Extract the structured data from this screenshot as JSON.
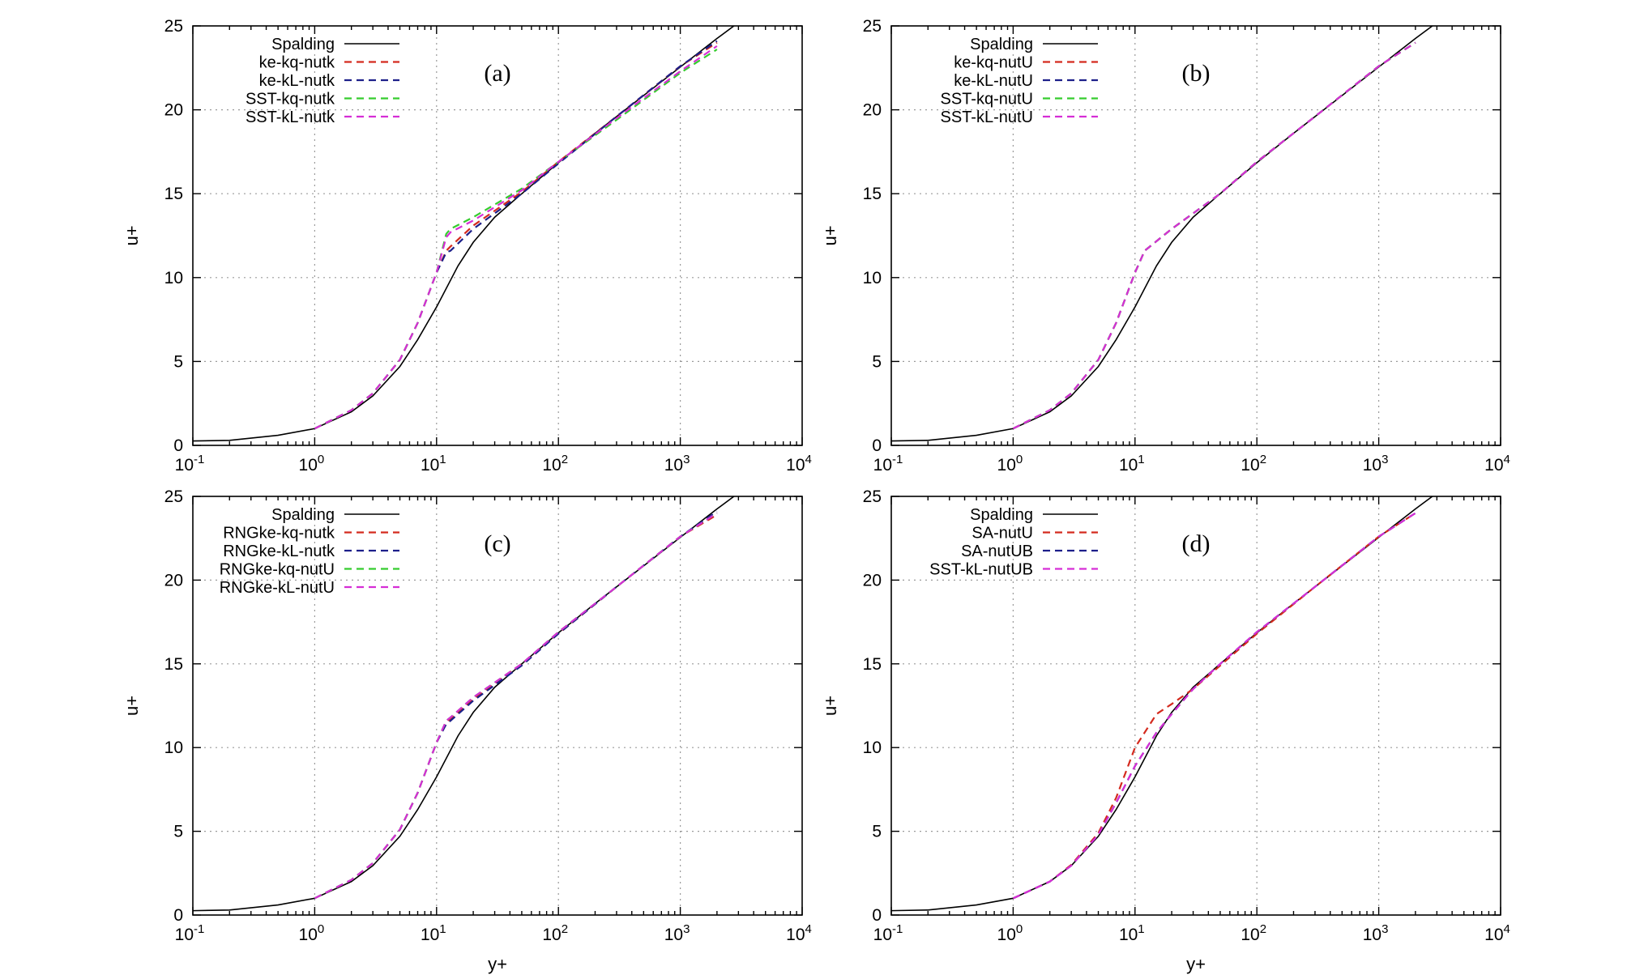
{
  "chart_data": [
    {
      "type": "line",
      "panel_label": "(a)",
      "xlabel": "",
      "ylabel": "u+",
      "xscale": "log",
      "xlim": [
        0.1,
        10000
      ],
      "ylim": [
        0,
        25
      ],
      "xticks": [
        0.1,
        1,
        10,
        100,
        1000,
        10000
      ],
      "yticks": [
        0,
        5,
        10,
        15,
        20,
        25
      ],
      "grid": true,
      "legend_position": "top-left",
      "series": [
        {
          "name": "Spalding",
          "color": "#000000",
          "dash": "solid",
          "x": [
            0.1,
            0.2,
            0.5,
            1,
            2,
            3,
            5,
            7,
            10,
            15,
            20,
            30,
            50,
            100,
            200,
            500,
            1000,
            2000,
            3000
          ],
          "y": [
            0.26,
            0.3,
            0.6,
            1.0,
            2.0,
            2.95,
            4.7,
            6.3,
            8.25,
            10.7,
            12.1,
            13.6,
            15.0,
            16.85,
            18.6,
            20.85,
            22.55,
            24.25,
            25.2
          ]
        },
        {
          "name": "ke-kq-nutk",
          "color": "#d42a1e",
          "dash": "dashed",
          "x": [
            1,
            2,
            3,
            5,
            7,
            10,
            12,
            13,
            20,
            50,
            100,
            300,
            1000,
            2000
          ],
          "y": [
            1.0,
            2.1,
            3.1,
            5.1,
            7.3,
            10.3,
            11.6,
            11.85,
            13.1,
            15.1,
            16.9,
            19.6,
            22.6,
            24.0
          ]
        },
        {
          "name": "ke-kL-nutk",
          "color": "#1c1f8a",
          "dash": "dashed",
          "x": [
            1,
            2,
            3,
            5,
            7,
            10,
            12,
            13,
            20,
            50,
            100,
            300,
            1000,
            2000
          ],
          "y": [
            1.0,
            2.1,
            3.1,
            5.1,
            7.3,
            10.3,
            11.5,
            11.6,
            12.9,
            15.0,
            16.8,
            19.6,
            22.6,
            24.1
          ]
        },
        {
          "name": "SST-kq-nutk",
          "color": "#35cc2e",
          "dash": "dashed",
          "x": [
            1,
            2,
            3,
            5,
            7,
            10,
            12,
            13,
            20,
            50,
            100,
            300,
            1000,
            2000
          ],
          "y": [
            1.0,
            2.1,
            3.1,
            5.1,
            7.3,
            10.3,
            12.6,
            12.9,
            13.6,
            15.3,
            16.9,
            19.4,
            22.2,
            23.6
          ]
        },
        {
          "name": "SST-kL-nutk",
          "color": "#d62ed6",
          "dash": "dashed",
          "x": [
            1,
            2,
            3,
            5,
            7,
            10,
            12,
            13,
            20,
            50,
            100,
            300,
            1000,
            2000
          ],
          "y": [
            1.0,
            2.1,
            3.1,
            5.1,
            7.3,
            10.3,
            12.4,
            12.7,
            13.4,
            15.2,
            16.9,
            19.5,
            22.3,
            23.8
          ]
        }
      ]
    },
    {
      "type": "line",
      "panel_label": "(b)",
      "xlabel": "",
      "ylabel": "u+",
      "xscale": "log",
      "xlim": [
        0.1,
        10000
      ],
      "ylim": [
        0,
        25
      ],
      "xticks": [
        0.1,
        1,
        10,
        100,
        1000,
        10000
      ],
      "yticks": [
        0,
        5,
        10,
        15,
        20,
        25
      ],
      "grid": true,
      "legend_position": "top-left",
      "series": [
        {
          "name": "Spalding",
          "color": "#000000",
          "dash": "solid",
          "x": [
            0.1,
            0.2,
            0.5,
            1,
            2,
            3,
            5,
            7,
            10,
            15,
            20,
            30,
            50,
            100,
            200,
            500,
            1000,
            2000,
            3000
          ],
          "y": [
            0.26,
            0.3,
            0.6,
            1.0,
            2.0,
            2.95,
            4.7,
            6.3,
            8.25,
            10.7,
            12.1,
            13.6,
            15.0,
            16.85,
            18.6,
            20.85,
            22.55,
            24.25,
            25.2
          ]
        },
        {
          "name": "ke-kq-nutU",
          "color": "#d42a1e",
          "dash": "dashed",
          "x": [
            1,
            2,
            3,
            5,
            7,
            10,
            12,
            20,
            50,
            100,
            300,
            1000,
            2000
          ],
          "y": [
            1.0,
            2.1,
            3.1,
            5.1,
            7.3,
            10.3,
            11.6,
            12.9,
            15.0,
            16.9,
            19.6,
            22.6,
            24.0
          ]
        },
        {
          "name": "ke-kL-nutU",
          "color": "#1c1f8a",
          "dash": "dashed",
          "x": [
            1,
            2,
            3,
            5,
            7,
            10,
            12,
            20,
            50,
            100,
            300,
            1000,
            2000
          ],
          "y": [
            1.0,
            2.1,
            3.1,
            5.1,
            7.3,
            10.3,
            11.6,
            12.9,
            15.0,
            16.9,
            19.6,
            22.6,
            24.0
          ]
        },
        {
          "name": "SST-kq-nutU",
          "color": "#35cc2e",
          "dash": "dashed",
          "x": [
            1,
            2,
            3,
            5,
            7,
            10,
            12,
            20,
            50,
            100,
            300,
            1000,
            2000
          ],
          "y": [
            1.0,
            2.1,
            3.1,
            5.1,
            7.3,
            10.3,
            11.6,
            12.9,
            15.0,
            16.9,
            19.6,
            22.6,
            24.0
          ]
        },
        {
          "name": "SST-kL-nutU",
          "color": "#d62ed6",
          "dash": "dashed",
          "x": [
            1,
            2,
            3,
            5,
            7,
            10,
            12,
            20,
            50,
            100,
            300,
            1000,
            2000
          ],
          "y": [
            1.0,
            2.1,
            3.1,
            5.1,
            7.3,
            10.3,
            11.6,
            12.9,
            15.0,
            16.9,
            19.6,
            22.6,
            24.0
          ]
        }
      ]
    },
    {
      "type": "line",
      "panel_label": "(c)",
      "xlabel": "y+",
      "ylabel": "u+",
      "xscale": "log",
      "xlim": [
        0.1,
        10000
      ],
      "ylim": [
        0,
        25
      ],
      "xticks": [
        0.1,
        1,
        10,
        100,
        1000,
        10000
      ],
      "yticks": [
        0,
        5,
        10,
        15,
        20,
        25
      ],
      "grid": true,
      "legend_position": "top-left",
      "series": [
        {
          "name": "Spalding",
          "color": "#000000",
          "dash": "solid",
          "x": [
            0.1,
            0.2,
            0.5,
            1,
            2,
            3,
            5,
            7,
            10,
            15,
            20,
            30,
            50,
            100,
            200,
            500,
            1000,
            2000,
            3000
          ],
          "y": [
            0.26,
            0.3,
            0.6,
            1.0,
            2.0,
            2.95,
            4.7,
            6.3,
            8.25,
            10.7,
            12.1,
            13.6,
            15.0,
            16.85,
            18.6,
            20.85,
            22.55,
            24.25,
            25.2
          ]
        },
        {
          "name": "RNGke-kq-nutk",
          "color": "#d42a1e",
          "dash": "dashed",
          "x": [
            1,
            2,
            3,
            5,
            7,
            10,
            12,
            13,
            20,
            50,
            100,
            300,
            1000,
            2000
          ],
          "y": [
            1.0,
            2.1,
            3.1,
            5.1,
            7.3,
            10.3,
            11.5,
            11.7,
            12.9,
            15.0,
            16.8,
            19.6,
            22.6,
            23.9
          ]
        },
        {
          "name": "RNGke-kL-nutk",
          "color": "#1c1f8a",
          "dash": "dashed",
          "x": [
            1,
            2,
            3,
            5,
            7,
            10,
            12,
            13,
            20,
            50,
            100,
            300,
            1000,
            2000
          ],
          "y": [
            1.0,
            2.1,
            3.1,
            5.1,
            7.3,
            10.3,
            11.4,
            11.6,
            12.8,
            14.9,
            16.8,
            19.6,
            22.6,
            24.1
          ]
        },
        {
          "name": "RNGke-kq-nutU",
          "color": "#35cc2e",
          "dash": "dashed",
          "x": [
            1,
            2,
            3,
            5,
            7,
            10,
            12,
            13,
            20,
            50,
            100,
            300,
            1000,
            2000
          ],
          "y": [
            1.0,
            2.1,
            3.1,
            5.1,
            7.3,
            10.3,
            11.6,
            11.8,
            13.0,
            15.0,
            16.9,
            19.6,
            22.6,
            24.0
          ]
        },
        {
          "name": "RNGke-kL-nutU",
          "color": "#d62ed6",
          "dash": "dashed",
          "x": [
            1,
            2,
            3,
            5,
            7,
            10,
            12,
            13,
            20,
            50,
            100,
            300,
            1000,
            2000
          ],
          "y": [
            1.0,
            2.1,
            3.1,
            5.1,
            7.3,
            10.3,
            11.6,
            11.8,
            13.0,
            15.0,
            16.9,
            19.6,
            22.6,
            24.0
          ]
        }
      ]
    },
    {
      "type": "line",
      "panel_label": "(d)",
      "xlabel": "y+",
      "ylabel": "u+",
      "xscale": "log",
      "xlim": [
        0.1,
        10000
      ],
      "ylim": [
        0,
        25
      ],
      "xticks": [
        0.1,
        1,
        10,
        100,
        1000,
        10000
      ],
      "yticks": [
        0,
        5,
        10,
        15,
        20,
        25
      ],
      "grid": true,
      "legend_position": "top-left",
      "series": [
        {
          "name": "Spalding",
          "color": "#000000",
          "dash": "solid",
          "x": [
            0.1,
            0.2,
            0.5,
            1,
            2,
            3,
            5,
            7,
            10,
            15,
            20,
            30,
            50,
            100,
            200,
            500,
            1000,
            2000,
            3000
          ],
          "y": [
            0.26,
            0.3,
            0.6,
            1.0,
            2.0,
            2.95,
            4.7,
            6.3,
            8.25,
            10.7,
            12.1,
            13.6,
            15.0,
            16.85,
            18.6,
            20.85,
            22.55,
            24.25,
            25.2
          ]
        },
        {
          "name": "SA-nutU",
          "color": "#d42a1e",
          "dash": "dashed",
          "x": [
            1,
            2,
            3,
            5,
            7,
            10,
            15,
            20,
            30,
            50,
            100,
            300,
            1000,
            2000
          ],
          "y": [
            1.0,
            2.0,
            3.0,
            4.9,
            7.0,
            10.0,
            12.0,
            12.6,
            13.5,
            14.9,
            16.8,
            19.6,
            22.6,
            24.0
          ]
        },
        {
          "name": "SA-nutUB",
          "color": "#1c1f8a",
          "dash": "dashed",
          "x": [
            1,
            2,
            3,
            5,
            7,
            10,
            15,
            20,
            30,
            50,
            100,
            300,
            1000,
            2000
          ],
          "y": [
            1.0,
            2.0,
            2.95,
            4.8,
            6.7,
            8.9,
            10.9,
            12.0,
            13.5,
            15.0,
            16.9,
            19.6,
            22.6,
            24.0
          ]
        },
        {
          "name": "SST-kL-nutUB",
          "color": "#d62ed6",
          "dash": "dashed",
          "x": [
            1,
            2,
            3,
            5,
            7,
            10,
            15,
            20,
            30,
            50,
            100,
            300,
            1000,
            2000
          ],
          "y": [
            1.0,
            2.0,
            2.95,
            4.8,
            6.7,
            8.9,
            10.9,
            12.0,
            13.5,
            15.0,
            16.9,
            19.6,
            22.6,
            24.0
          ]
        }
      ]
    }
  ]
}
